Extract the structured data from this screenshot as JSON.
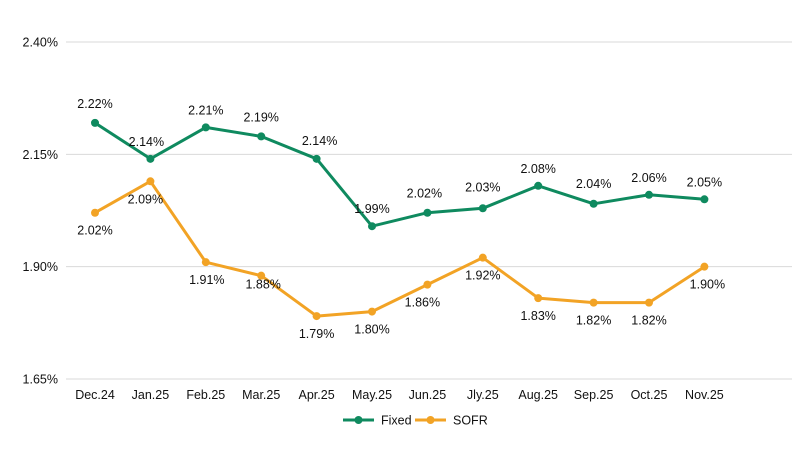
{
  "chart_data": {
    "type": "line",
    "categories": [
      "Dec.24",
      "Jan.25",
      "Feb.25",
      "Mar.25",
      "Apr.25",
      "May.25",
      "Jun.25",
      "Jly.25",
      "Aug.25",
      "Sep.25",
      "Oct.25",
      "Nov.25"
    ],
    "series": [
      {
        "name": "Fixed",
        "color": "#0f8a5f",
        "values": [
          2.22,
          2.14,
          2.21,
          2.19,
          2.14,
          1.99,
          2.02,
          2.03,
          2.08,
          2.04,
          2.06,
          2.05
        ],
        "labels": [
          "2.22%",
          "2.14%",
          "2.21%",
          "2.19%",
          "2.14%",
          "1.99%",
          "2.02%",
          "2.03%",
          "2.08%",
          "2.04%",
          "2.06%",
          "2.05%"
        ]
      },
      {
        "name": "SOFR",
        "color": "#f2a325",
        "values": [
          2.02,
          2.09,
          1.91,
          1.88,
          1.79,
          1.8,
          1.86,
          1.92,
          1.83,
          1.82,
          1.82,
          1.9
        ],
        "labels": [
          "2.02%",
          "2.09%",
          "1.91%",
          "1.88%",
          "1.79%",
          "1.80%",
          "1.86%",
          "1.92%",
          "1.83%",
          "1.82%",
          "1.82%",
          "1.90%"
        ]
      }
    ],
    "yticks": [
      2.4,
      2.15,
      1.9,
      1.65
    ],
    "ytick_labels": [
      "2.40%",
      "2.15%",
      "1.90%",
      "1.65%"
    ],
    "ylim": [
      1.65,
      2.4
    ],
    "grid": true,
    "legend": "bottom-center"
  }
}
